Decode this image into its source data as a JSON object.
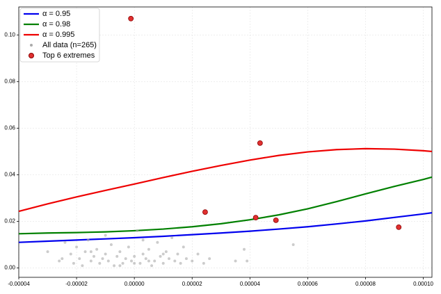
{
  "chart_data": {
    "type": "line",
    "xlim": [
      -4e-05,
      0.000103
    ],
    "ylim": [
      -0.004,
      0.112
    ],
    "xticks": [
      {
        "value": -4e-05,
        "label": "-0.00004"
      },
      {
        "value": -2e-05,
        "label": "-0.00002"
      },
      {
        "value": 0,
        "label": "0.00000"
      },
      {
        "value": 2e-05,
        "label": "0.00002"
      },
      {
        "value": 4e-05,
        "label": "0.00004"
      },
      {
        "value": 6e-05,
        "label": "0.00006"
      },
      {
        "value": 8e-05,
        "label": "0.00008"
      },
      {
        "value": 0.0001,
        "label": "0.00010"
      }
    ],
    "yticks": [
      {
        "value": 0,
        "label": "0.00"
      },
      {
        "value": 0.02,
        "label": "0.02"
      },
      {
        "value": 0.04,
        "label": "0.04"
      },
      {
        "value": 0.06,
        "label": "0.06"
      },
      {
        "value": 0.08,
        "label": "0.08"
      },
      {
        "value": 0.1,
        "label": "0.10"
      }
    ],
    "grid": true,
    "legend": "upper left",
    "series": [
      {
        "name": "α = 0.95",
        "type": "line",
        "color": "#0000ee",
        "x": [
          -4e-05,
          -3e-05,
          -2e-05,
          -1e-05,
          0,
          1e-05,
          2e-05,
          3e-05,
          4e-05,
          5e-05,
          6e-05,
          7e-05,
          8e-05,
          9e-05,
          0.0001,
          0.000103
        ],
        "values": [
          0.011,
          0.0115,
          0.012,
          0.0125,
          0.013,
          0.0136,
          0.0143,
          0.015,
          0.0158,
          0.0167,
          0.0177,
          0.0189,
          0.0202,
          0.0217,
          0.0232,
          0.0237
        ]
      },
      {
        "name": "α = 0.98",
        "type": "line",
        "color": "#008000",
        "x": [
          -4e-05,
          -3e-05,
          -2e-05,
          -1e-05,
          0,
          1e-05,
          2e-05,
          3e-05,
          4e-05,
          5e-05,
          6e-05,
          7e-05,
          8e-05,
          9e-05,
          0.0001,
          0.000103
        ],
        "values": [
          0.0147,
          0.015,
          0.0152,
          0.0155,
          0.016,
          0.0167,
          0.0177,
          0.019,
          0.0207,
          0.0228,
          0.0254,
          0.0285,
          0.0318,
          0.035,
          0.038,
          0.039
        ]
      },
      {
        "name": "α = 0.995",
        "type": "line",
        "color": "#ee0000",
        "x": [
          -4e-05,
          -3e-05,
          -2e-05,
          -1e-05,
          0,
          1e-05,
          2e-05,
          3e-05,
          4e-05,
          5e-05,
          6e-05,
          7e-05,
          8e-05,
          9e-05,
          0.0001,
          0.000103
        ],
        "values": [
          0.0243,
          0.0275,
          0.0305,
          0.0333,
          0.036,
          0.0388,
          0.0415,
          0.044,
          0.0463,
          0.0483,
          0.0498,
          0.0508,
          0.0512,
          0.051,
          0.0503,
          0.05
        ]
      },
      {
        "name": "All data (n=265)",
        "type": "scatter",
        "color": "#aaaaaa",
        "x": [
          -3e-05,
          -2.6e-05,
          -2.4e-05,
          -2.2e-05,
          -2.1e-05,
          -2e-05,
          -1.9e-05,
          -1.8e-05,
          -1.7e-05,
          -1.6e-05,
          -1.5e-05,
          -1.4e-05,
          -1.3e-05,
          -1.2e-05,
          -1.1e-05,
          -1e-05,
          -9e-06,
          -8e-06,
          -7e-06,
          -6e-06,
          -5e-06,
          -4e-06,
          -3e-06,
          -2e-06,
          -1e-06,
          0,
          1e-06,
          2e-06,
          3e-06,
          4e-06,
          5e-06,
          6e-06,
          7e-06,
          8e-06,
          9e-06,
          1e-05,
          1.1e-05,
          1.2e-05,
          1.3e-05,
          1.4e-05,
          1.5e-05,
          1.6e-05,
          1.7e-05,
          1.8e-05,
          2e-05,
          2.2e-05,
          2.4e-05,
          2.6e-05,
          3.5e-05,
          3.8e-05,
          3.9e-05,
          5.5e-05,
          -1e-05,
          -5e-06,
          5e-06,
          1e-05,
          -1.5e-05,
          -2.5e-05,
          0,
          3e-06
        ],
        "values": [
          0.007,
          0.003,
          0.011,
          0.006,
          0.002,
          0.009,
          0.004,
          0.001,
          0.007,
          0.012,
          0.003,
          0.005,
          0.008,
          0.002,
          0.004,
          0.006,
          0.003,
          0.01,
          0.001,
          0.005,
          0.007,
          0.002,
          0.004,
          0.009,
          0.003,
          0.005,
          0.016,
          0.002,
          0.006,
          0.004,
          0.008,
          0.001,
          0.003,
          0.011,
          0.005,
          0.002,
          0.007,
          0.004,
          0.013,
          0.003,
          0.006,
          0.002,
          0.009,
          0.004,
          0.003,
          0.006,
          0.002,
          0.004,
          0.003,
          0.008,
          0.003,
          0.01,
          0.014,
          0.001,
          0.003,
          0.006,
          0.007,
          0.004,
          0.002,
          0.012
        ]
      },
      {
        "name": "Top 6 extremes",
        "type": "scatter",
        "color": "#e03030",
        "x": [
          -1.2e-06,
          4.35e-05,
          2.45e-05,
          4.2e-05,
          4.9e-05,
          9.15e-05
        ],
        "values": [
          0.107,
          0.0536,
          0.024,
          0.0216,
          0.0205,
          0.0175
        ]
      }
    ]
  }
}
